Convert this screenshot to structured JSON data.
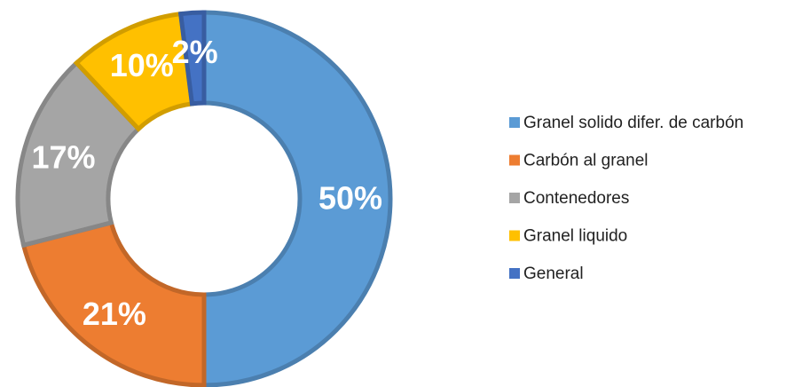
{
  "chart_data": {
    "type": "donut",
    "categories": [
      "Granel solido difer. de carbón",
      "Carbón al granel",
      "Contenedores",
      "Granel liquido",
      "General"
    ],
    "values": [
      50,
      21,
      17,
      10,
      2
    ],
    "value_labels": [
      "50%",
      "21%",
      "17%",
      "10%",
      "2%"
    ],
    "colors": [
      "#5b9bd5",
      "#ed7d31",
      "#a5a5a5",
      "#ffc000",
      "#4472c4"
    ],
    "legend": "right"
  }
}
